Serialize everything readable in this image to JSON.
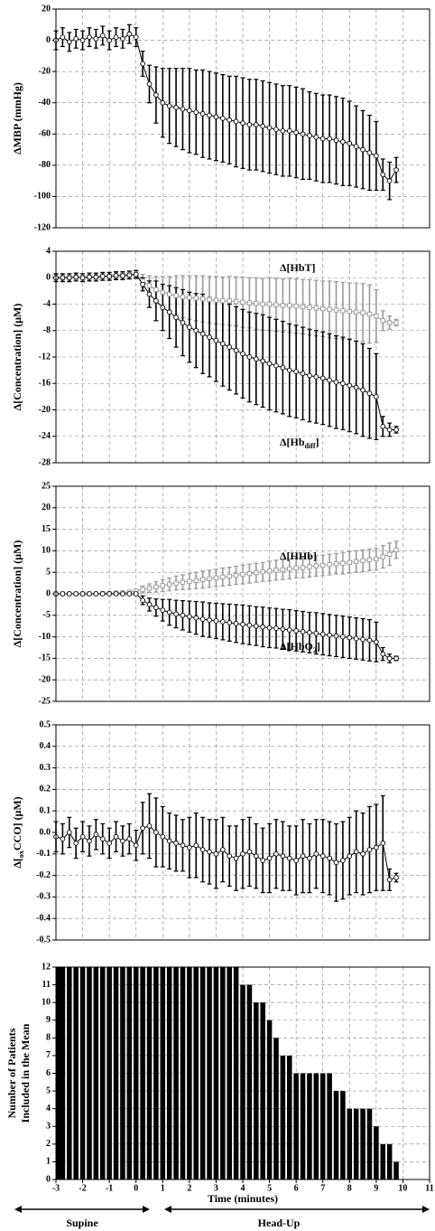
{
  "chart_data": [
    {
      "type": "line",
      "ylabel": "ΔMBP (mmHg)",
      "x": [
        -3,
        -2.75,
        -2.5,
        -2.25,
        -2,
        -1.75,
        -1.5,
        -1.25,
        -1,
        -0.75,
        -0.5,
        -0.25,
        0,
        0.25,
        0.5,
        0.75,
        1,
        1.25,
        1.5,
        1.75,
        2,
        2.25,
        2.5,
        2.75,
        3,
        3.25,
        3.5,
        3.75,
        4,
        4.25,
        4.5,
        4.75,
        5,
        5.25,
        5.5,
        5.75,
        6,
        6.25,
        6.5,
        6.75,
        7,
        7.25,
        7.5,
        7.75,
        8,
        8.25,
        8.5,
        8.75,
        9,
        9.25,
        9.5,
        9.75
      ],
      "xlim": [
        -3,
        11
      ],
      "xticks": [
        -3,
        -2,
        -1,
        0,
        1,
        2,
        3,
        4,
        5,
        6,
        7,
        8,
        9,
        10,
        11
      ],
      "show_xtick_labels": false,
      "ylim": [
        -120,
        20
      ],
      "yticks": [
        -120,
        -100,
        -80,
        -60,
        -40,
        -20,
        0,
        20
      ],
      "grid": true,
      "series": [
        {
          "color": "#000000",
          "marker": "circle",
          "values": [
            0,
            2,
            -1,
            1,
            0,
            2,
            1,
            3,
            0,
            2,
            1,
            4,
            2,
            -15,
            -28,
            -35,
            -40,
            -42,
            -43,
            -44,
            -45,
            -46,
            -47,
            -48,
            -49,
            -50,
            -51,
            -52,
            -53,
            -54,
            -54,
            -55,
            -56,
            -57,
            -58,
            -58,
            -59,
            -60,
            -61,
            -62,
            -63,
            -63,
            -64,
            -65,
            -66,
            -68,
            -70,
            -72,
            -74,
            -86,
            -90,
            -83
          ],
          "errors": [
            6,
            6,
            6,
            6,
            6,
            6,
            6,
            6,
            6,
            6,
            6,
            6,
            6,
            8,
            12,
            18,
            22,
            24,
            25,
            26,
            27,
            27,
            28,
            28,
            28,
            28,
            28,
            29,
            29,
            29,
            29,
            29,
            29,
            29,
            29,
            29,
            29,
            29,
            28,
            28,
            28,
            28,
            28,
            28,
            27,
            26,
            25,
            24,
            22,
            10,
            12,
            8
          ]
        }
      ]
    },
    {
      "type": "line",
      "ylabel": "Δ[Concentration] (μM)",
      "x": [
        -3,
        -2.75,
        -2.5,
        -2.25,
        -2,
        -1.75,
        -1.5,
        -1.25,
        -1,
        -0.75,
        -0.5,
        -0.25,
        0,
        0.25,
        0.5,
        0.75,
        1,
        1.25,
        1.5,
        1.75,
        2,
        2.25,
        2.5,
        2.75,
        3,
        3.25,
        3.5,
        3.75,
        4,
        4.25,
        4.5,
        4.75,
        5,
        5.25,
        5.5,
        5.75,
        6,
        6.25,
        6.5,
        6.75,
        7,
        7.25,
        7.5,
        7.75,
        8,
        8.25,
        8.5,
        8.75,
        9,
        9.25,
        9.5,
        9.75
      ],
      "xlim": [
        -3,
        11
      ],
      "xticks": [
        -3,
        -2,
        -1,
        0,
        1,
        2,
        3,
        4,
        5,
        6,
        7,
        8,
        9,
        10,
        11
      ],
      "show_xtick_labels": false,
      "ylim": [
        -28,
        4
      ],
      "yticks": [
        -28,
        -24,
        -20,
        -16,
        -12,
        -8,
        -4,
        0,
        4
      ],
      "grid": true,
      "series": [
        {
          "name": "Δ[HbT]",
          "color": "#999999",
          "marker": "square",
          "values": [
            0,
            0,
            0.1,
            0,
            0.1,
            0.1,
            0,
            0.2,
            0.2,
            0.3,
            0.4,
            0.5,
            0.6,
            -0.5,
            -1.2,
            -1.8,
            -2.2,
            -2.5,
            -2.7,
            -2.9,
            -3.0,
            -3.1,
            -3.2,
            -3.3,
            -3.4,
            -3.5,
            -3.5,
            -3.6,
            -3.7,
            -3.8,
            -3.9,
            -4.0,
            -4.0,
            -4.1,
            -4.2,
            -4.2,
            -4.3,
            -4.4,
            -4.5,
            -4.6,
            -4.7,
            -4.8,
            -4.9,
            -5.0,
            -5.1,
            -5.2,
            -5.3,
            -5.5,
            -5.8,
            -6.5,
            -6.8,
            -6.8
          ],
          "errors": [
            0.5,
            0.5,
            0.5,
            0.5,
            0.5,
            0.5,
            0.5,
            0.5,
            0.5,
            0.5,
            0.5,
            0.5,
            0.5,
            1,
            1.5,
            2,
            2.4,
            2.7,
            3,
            3.2,
            3.3,
            3.4,
            3.5,
            3.5,
            3.6,
            3.6,
            3.7,
            3.7,
            3.8,
            3.8,
            3.9,
            3.9,
            4.0,
            4.0,
            4.0,
            4.1,
            4.1,
            4.1,
            4.2,
            4.2,
            4.2,
            4.3,
            4.3,
            4.3,
            4.3,
            4.4,
            4.4,
            4.4,
            4.0,
            1.5,
            1.0,
            0.5
          ]
        },
        {
          "name": {
            "text": "Δ[Hb",
            "sub": "diff",
            "end": "]"
          },
          "color": "#000000",
          "marker": "circle",
          "values": [
            0,
            0,
            0,
            0.1,
            0,
            0.1,
            0.1,
            0.2,
            0.2,
            0.3,
            0.3,
            0.4,
            0.5,
            -1,
            -2.5,
            -3.5,
            -4.5,
            -5.2,
            -6,
            -6.8,
            -7.5,
            -8,
            -8.5,
            -9,
            -9.5,
            -10,
            -10.5,
            -11,
            -11.5,
            -12,
            -12.3,
            -12.6,
            -13,
            -13.3,
            -13.6,
            -14,
            -14.2,
            -14.5,
            -14.8,
            -15,
            -15.2,
            -15.5,
            -15.8,
            -16,
            -16.3,
            -16.6,
            -17,
            -17.5,
            -18,
            -22.5,
            -23,
            -23
          ],
          "errors": [
            0.6,
            0.6,
            0.6,
            0.6,
            0.6,
            0.6,
            0.6,
            0.6,
            0.6,
            0.6,
            0.6,
            0.6,
            0.6,
            1,
            2,
            3,
            3.5,
            4,
            4.5,
            5,
            5.3,
            5.6,
            6,
            6,
            6.2,
            6.4,
            6.5,
            6.6,
            6.7,
            6.8,
            6.9,
            7,
            7,
            7,
            7,
            7,
            7,
            7,
            7,
            7,
            7,
            7,
            7,
            7,
            7,
            7,
            7,
            6.8,
            6.5,
            1.5,
            1,
            0.5
          ]
        }
      ]
    },
    {
      "type": "line",
      "ylabel": "Δ[Concentration] (μM)",
      "x": [
        -3,
        -2.75,
        -2.5,
        -2.25,
        -2,
        -1.75,
        -1.5,
        -1.25,
        -1,
        -0.75,
        -0.5,
        -0.25,
        0,
        0.25,
        0.5,
        0.75,
        1,
        1.25,
        1.5,
        1.75,
        2,
        2.25,
        2.5,
        2.75,
        3,
        3.25,
        3.5,
        3.75,
        4,
        4.25,
        4.5,
        4.75,
        5,
        5.25,
        5.5,
        5.75,
        6,
        6.25,
        6.5,
        6.75,
        7,
        7.25,
        7.5,
        7.75,
        8,
        8.25,
        8.5,
        8.75,
        9,
        9.25,
        9.5,
        9.75
      ],
      "xlim": [
        -3,
        11
      ],
      "xticks": [
        -3,
        -2,
        -1,
        0,
        1,
        2,
        3,
        4,
        5,
        6,
        7,
        8,
        9,
        10,
        11
      ],
      "show_xtick_labels": false,
      "ylim": [
        -25,
        25
      ],
      "yticks": [
        -25,
        -20,
        -15,
        -10,
        -5,
        0,
        5,
        10,
        15,
        20,
        25
      ],
      "grid": true,
      "series": [
        {
          "name": "Δ[HHb]",
          "color": "#999999",
          "marker": "square",
          "values": [
            0,
            0,
            0,
            0,
            0,
            0,
            0,
            0.1,
            0.1,
            0.2,
            0.3,
            0.4,
            0.6,
            1,
            1.3,
            1.6,
            1.9,
            2.2,
            2.5,
            2.7,
            2.9,
            3.1,
            3.3,
            3.5,
            3.7,
            3.9,
            4.1,
            4.3,
            4.5,
            4.7,
            4.9,
            5.1,
            5.3,
            5.5,
            5.6,
            5.8,
            6.0,
            6.1,
            6.3,
            6.5,
            6.6,
            6.8,
            7.0,
            7.1,
            7.3,
            7.5,
            7.7,
            7.9,
            8.1,
            8.6,
            9.2,
            10.2
          ],
          "errors": [
            0.3,
            0.3,
            0.3,
            0.3,
            0.3,
            0.3,
            0.3,
            0.3,
            0.3,
            0.3,
            0.3,
            0.3,
            0.3,
            0.8,
            1,
            1.2,
            1.4,
            1.5,
            1.6,
            1.7,
            1.8,
            1.9,
            2,
            2,
            2,
            2.1,
            2.1,
            2.1,
            2.2,
            2.2,
            2.2,
            2.2,
            2.3,
            2.3,
            2.3,
            2.3,
            2.3,
            2.4,
            2.4,
            2.4,
            2.4,
            2.4,
            2.4,
            2.5,
            2.5,
            2.5,
            2.5,
            2.5,
            2.5,
            2.6,
            2.6,
            2
          ]
        },
        {
          "name": {
            "text": "Δ[HbO",
            "sub": "2",
            "end": "]"
          },
          "color": "#000000",
          "marker": "circle",
          "values": [
            0,
            0,
            0,
            0,
            0,
            0,
            0,
            0,
            0,
            0,
            0,
            0,
            0,
            -1.5,
            -2.5,
            -3.2,
            -3.8,
            -4.3,
            -4.7,
            -5.0,
            -5.3,
            -5.6,
            -5.9,
            -6.1,
            -6.3,
            -6.5,
            -6.7,
            -6.9,
            -7.1,
            -7.3,
            -7.5,
            -7.7,
            -7.9,
            -8.0,
            -8.2,
            -8.4,
            -8.6,
            -8.8,
            -9.0,
            -9.2,
            -9.4,
            -9.6,
            -9.8,
            -10.0,
            -10.2,
            -10.4,
            -10.6,
            -10.8,
            -11.2,
            -14.0,
            -15.0,
            -15.0
          ],
          "errors": [
            0.3,
            0.3,
            0.3,
            0.3,
            0.3,
            0.3,
            0.3,
            0.3,
            0.3,
            0.3,
            0.3,
            0.3,
            0.3,
            1,
            1.5,
            2,
            2.5,
            3,
            3.2,
            3.4,
            3.6,
            3.8,
            4,
            4,
            4.1,
            4.2,
            4.3,
            4.4,
            4.5,
            4.5,
            4.5,
            4.6,
            4.6,
            4.6,
            4.6,
            4.7,
            4.7,
            4.7,
            4.7,
            4.8,
            4.8,
            4.8,
            4.8,
            4.8,
            4.8,
            4.8,
            4.8,
            4.8,
            4.6,
            1.5,
            1,
            0.5
          ]
        }
      ]
    },
    {
      "type": "line",
      "ylabel": {
        "text": "Δ[",
        "sub": "ox",
        "end": "CCO] (μM)"
      },
      "x": [
        -3,
        -2.75,
        -2.5,
        -2.25,
        -2,
        -1.75,
        -1.5,
        -1.25,
        -1,
        -0.75,
        -0.5,
        -0.25,
        0,
        0.25,
        0.5,
        0.75,
        1,
        1.25,
        1.5,
        1.75,
        2,
        2.25,
        2.5,
        2.75,
        3,
        3.25,
        3.5,
        3.75,
        4,
        4.25,
        4.5,
        4.75,
        5,
        5.25,
        5.5,
        5.75,
        6,
        6.25,
        6.5,
        6.75,
        7,
        7.25,
        7.5,
        7.75,
        8,
        8.25,
        8.5,
        8.75,
        9,
        9.25,
        9.5,
        9.75
      ],
      "xlim": [
        -3,
        11
      ],
      "xticks": [
        -3,
        -2,
        -1,
        0,
        1,
        2,
        3,
        4,
        5,
        6,
        7,
        8,
        9,
        10,
        11
      ],
      "show_xtick_labels": false,
      "ylim": [
        -0.5,
        0.5
      ],
      "yticks": [
        -0.5,
        -0.4,
        -0.3,
        -0.2,
        -0.1,
        {
          "value": 0,
          "label": "0.0"
        },
        0.1,
        0.2,
        0.3,
        0.4,
        0.5
      ],
      "grid": true,
      "series": [
        {
          "color": "#000000",
          "marker": "circle",
          "values": [
            -0.02,
            -0.03,
            0.0,
            -0.05,
            -0.02,
            -0.04,
            -0.01,
            -0.03,
            -0.05,
            -0.02,
            -0.04,
            -0.03,
            -0.06,
            0.02,
            0.03,
            0.0,
            -0.02,
            -0.04,
            -0.05,
            -0.06,
            -0.07,
            -0.06,
            -0.08,
            -0.09,
            -0.1,
            -0.08,
            -0.11,
            -0.12,
            -0.1,
            -0.09,
            -0.11,
            -0.13,
            -0.12,
            -0.1,
            -0.11,
            -0.12,
            -0.13,
            -0.11,
            -0.12,
            -0.1,
            -0.11,
            -0.12,
            -0.14,
            -0.13,
            -0.11,
            -0.09,
            -0.1,
            -0.08,
            -0.07,
            -0.05,
            -0.22,
            -0.21
          ],
          "errors": [
            0.07,
            0.07,
            0.07,
            0.07,
            0.07,
            0.07,
            0.07,
            0.07,
            0.07,
            0.07,
            0.07,
            0.07,
            0.07,
            0.12,
            0.15,
            0.16,
            0.14,
            0.13,
            0.13,
            0.12,
            0.14,
            0.15,
            0.15,
            0.15,
            0.16,
            0.15,
            0.14,
            0.15,
            0.16,
            0.16,
            0.15,
            0.15,
            0.16,
            0.16,
            0.16,
            0.15,
            0.16,
            0.17,
            0.16,
            0.16,
            0.17,
            0.17,
            0.18,
            0.18,
            0.18,
            0.19,
            0.19,
            0.2,
            0.2,
            0.22,
            0.05,
            0.02
          ]
        }
      ]
    },
    {
      "type": "bar",
      "ylabel": [
        "Number of Patients",
        "Included in the Mean"
      ],
      "xlabel": "Time (minutes)",
      "x": [
        -3,
        -2.75,
        -2.5,
        -2.25,
        -2,
        -1.75,
        -1.5,
        -1.25,
        -1,
        -0.75,
        -0.5,
        -0.25,
        0,
        0.25,
        0.5,
        0.75,
        1,
        1.25,
        1.5,
        1.75,
        2,
        2.25,
        2.5,
        2.75,
        3,
        3.25,
        3.5,
        3.75,
        4,
        4.25,
        4.5,
        4.75,
        5,
        5.25,
        5.5,
        5.75,
        6,
        6.25,
        6.5,
        6.75,
        7,
        7.25,
        7.5,
        7.75,
        8,
        8.25,
        8.5,
        8.75,
        9,
        9.25,
        9.5,
        9.75,
        10,
        10.25,
        10.5,
        10.75
      ],
      "values": [
        12,
        12,
        12,
        12,
        12,
        12,
        12,
        12,
        12,
        12,
        12,
        12,
        12,
        12,
        12,
        12,
        12,
        12,
        12,
        12,
        12,
        12,
        12,
        12,
        12,
        12,
        12,
        12,
        11,
        11,
        10,
        10,
        9,
        8,
        7,
        7,
        6,
        6,
        6,
        6,
        6,
        6,
        5,
        5,
        4,
        4,
        4,
        4,
        3,
        2,
        2,
        1,
        0,
        0,
        0,
        0
      ],
      "color": "#000000",
      "xlim": [
        -3,
        11
      ],
      "xticks": [
        -3,
        -2,
        -1,
        0,
        1,
        2,
        3,
        4,
        5,
        6,
        7,
        8,
        9,
        10,
        11
      ],
      "show_xtick_labels": true,
      "ylim": [
        0,
        12
      ],
      "yticks": [
        0,
        1,
        2,
        3,
        4,
        5,
        6,
        7,
        8,
        9,
        10,
        11,
        12
      ],
      "grid": true,
      "phases": [
        "Supine",
        "Head-Up"
      ]
    }
  ]
}
